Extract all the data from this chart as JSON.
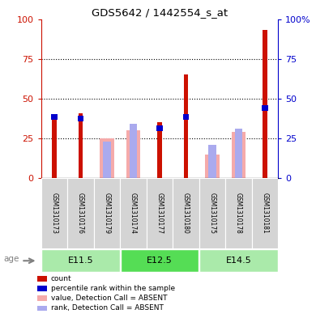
{
  "title": "GDS5642 / 1442554_s_at",
  "samples": [
    "GSM1310173",
    "GSM1310176",
    "GSM1310179",
    "GSM1310174",
    "GSM1310177",
    "GSM1310180",
    "GSM1310175",
    "GSM1310178",
    "GSM1310181"
  ],
  "count": [
    39,
    41,
    0,
    0,
    35,
    65,
    0,
    0,
    93
  ],
  "percentile_rank": [
    40,
    39,
    0,
    0,
    33,
    40,
    0,
    0,
    46
  ],
  "value_absent": [
    0,
    0,
    25,
    30,
    0,
    0,
    15,
    29,
    0
  ],
  "rank_absent": [
    0,
    0,
    23,
    34,
    0,
    0,
    21,
    31,
    0
  ],
  "color_count": "#cc1100",
  "color_percentile": "#0000cc",
  "color_value_absent": "#f5aaaa",
  "color_rank_absent": "#aaaaee",
  "ylim": [
    0,
    100
  ],
  "yticks": [
    0,
    25,
    50,
    75,
    100
  ],
  "groups": [
    {
      "label": "E11.5",
      "indices": [
        0,
        1,
        2
      ],
      "color": "#aaeaaa"
    },
    {
      "label": "E12.5",
      "indices": [
        3,
        4,
        5
      ],
      "color": "#55dd55"
    },
    {
      "label": "E14.5",
      "indices": [
        6,
        7,
        8
      ],
      "color": "#aaeaaa"
    }
  ],
  "age_label": "age",
  "legend_items": [
    {
      "label": "count",
      "color": "#cc1100"
    },
    {
      "label": "percentile rank within the sample",
      "color": "#0000cc"
    },
    {
      "label": "value, Detection Call = ABSENT",
      "color": "#f5aaaa"
    },
    {
      "label": "rank, Detection Call = ABSENT",
      "color": "#aaaaee"
    }
  ],
  "background_color": "#ffffff",
  "tick_color_left": "#cc1100",
  "tick_color_right": "#0000cc"
}
